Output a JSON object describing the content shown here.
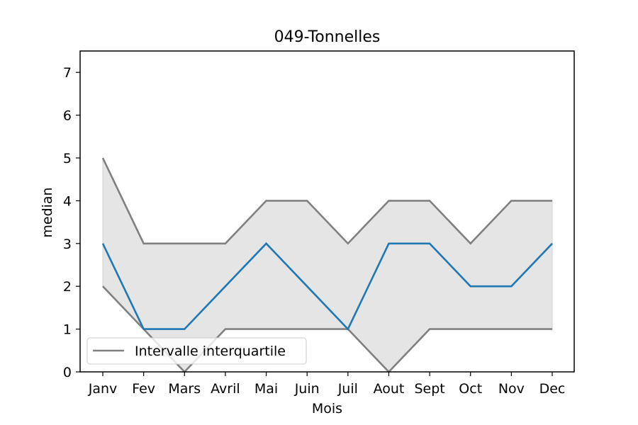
{
  "chart_data": {
    "type": "line",
    "title": "049-Tonnelles",
    "xlabel": "Mois",
    "ylabel": "median",
    "categories": [
      "Janv",
      "Fev",
      "Mars",
      "Avril",
      "Mai",
      "Juin",
      "Juil",
      "Aout",
      "Sept",
      "Oct",
      "Nov",
      "Dec"
    ],
    "series": [
      {
        "name": "",
        "role": "median",
        "color": "#1f77b4",
        "values": [
          3,
          1,
          1,
          2,
          3,
          2,
          1,
          3,
          3,
          2,
          2,
          3
        ]
      },
      {
        "name": "Intervalle interquartile",
        "role": "q3",
        "color": "#808080",
        "values": [
          5,
          3,
          3,
          3,
          4,
          4,
          3,
          4,
          4,
          3,
          4,
          4
        ]
      },
      {
        "name": "",
        "role": "q1",
        "color": "#808080",
        "values": [
          2,
          1,
          0,
          1,
          1,
          1,
          1,
          0,
          1,
          1,
          1,
          1
        ]
      }
    ],
    "band_color": "#e5e5e5",
    "ylim": [
      0,
      7.5
    ],
    "yticks": [
      0,
      1,
      2,
      3,
      4,
      5,
      6,
      7
    ],
    "grid": false,
    "legend": {
      "placement": "lower-left",
      "entries": [
        "Intervalle interquartile"
      ]
    }
  }
}
